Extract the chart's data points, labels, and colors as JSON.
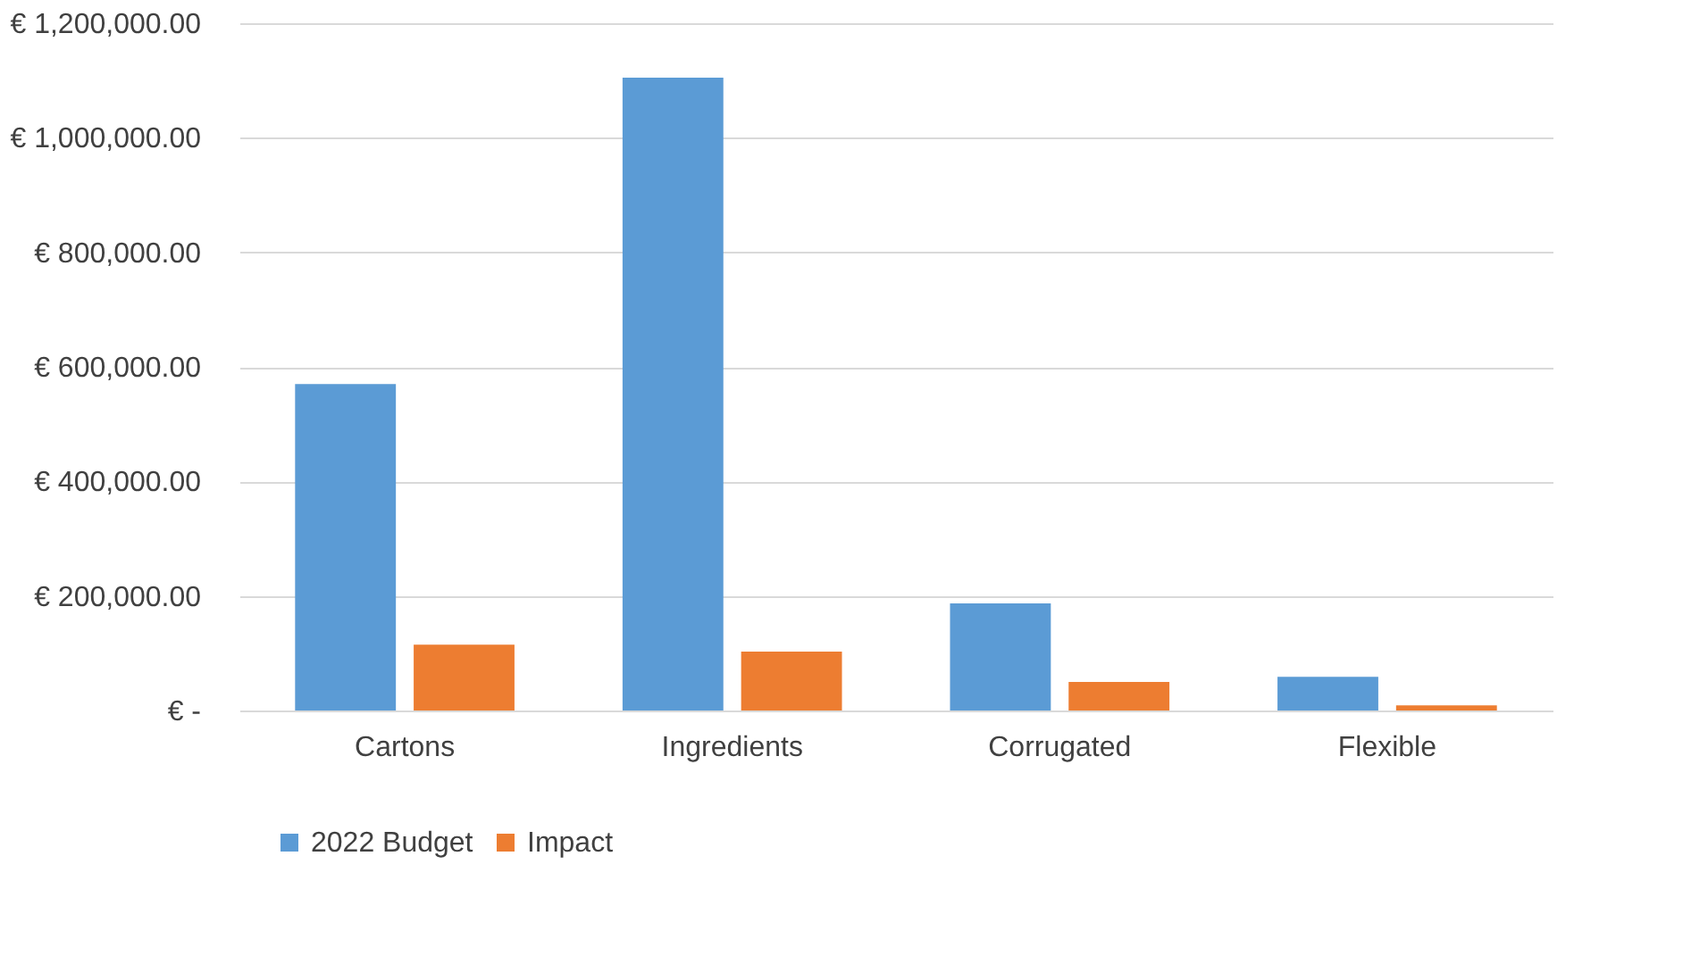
{
  "chart_data": {
    "type": "bar",
    "categories": [
      "Cartons",
      "Ingredients",
      "Corrugated",
      "Flexible"
    ],
    "series": [
      {
        "name": "2022 Budget",
        "color": "#5b9bd5",
        "values": [
          570000,
          1105000,
          187000,
          59000
        ]
      },
      {
        "name": "Impact",
        "color": "#ed7d31",
        "values": [
          115000,
          103000,
          50000,
          9000
        ]
      }
    ],
    "ylim": [
      0,
      1200000
    ],
    "yticks": [
      {
        "value": 0,
        "label": "€ -"
      },
      {
        "value": 200000,
        "label": "€ 200,000.00"
      },
      {
        "value": 400000,
        "label": "€ 400,000.00"
      },
      {
        "value": 600000,
        "label": "€ 600,000.00"
      },
      {
        "value": 800000,
        "label": "€ 800,000.00"
      },
      {
        "value": 1000000,
        "label": "€ 1,000,000.00"
      },
      {
        "value": 1200000,
        "label": "€ 1,200,000.00"
      }
    ],
    "grid": "y",
    "legend": "bottom"
  }
}
